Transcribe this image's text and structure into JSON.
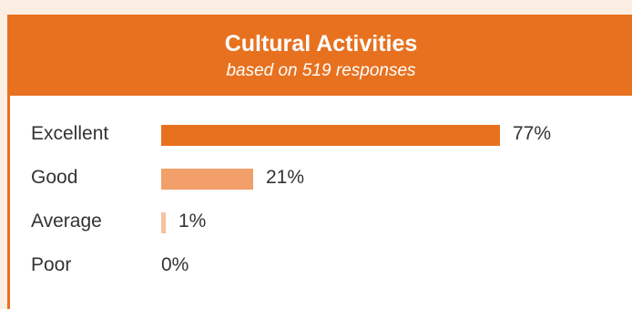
{
  "chart_data": {
    "type": "bar",
    "orientation": "horizontal",
    "title": "Cultural Activities",
    "subtitle": "based on 519 responses",
    "categories": [
      "Excellent",
      "Good",
      "Average",
      "Poor"
    ],
    "values": [
      77,
      21,
      1,
      0
    ],
    "value_labels": [
      "77%",
      "21%",
      "1%",
      "0%"
    ],
    "unit": "%",
    "xlim": [
      0,
      100
    ],
    "grid": false,
    "legend": "none",
    "colors": [
      "#e8711f",
      "#f29f69",
      "#f6c29f",
      "#f6c29f"
    ]
  },
  "theme": {
    "header_bg": "#e8711f",
    "page_bg": "#fdeee3"
  }
}
